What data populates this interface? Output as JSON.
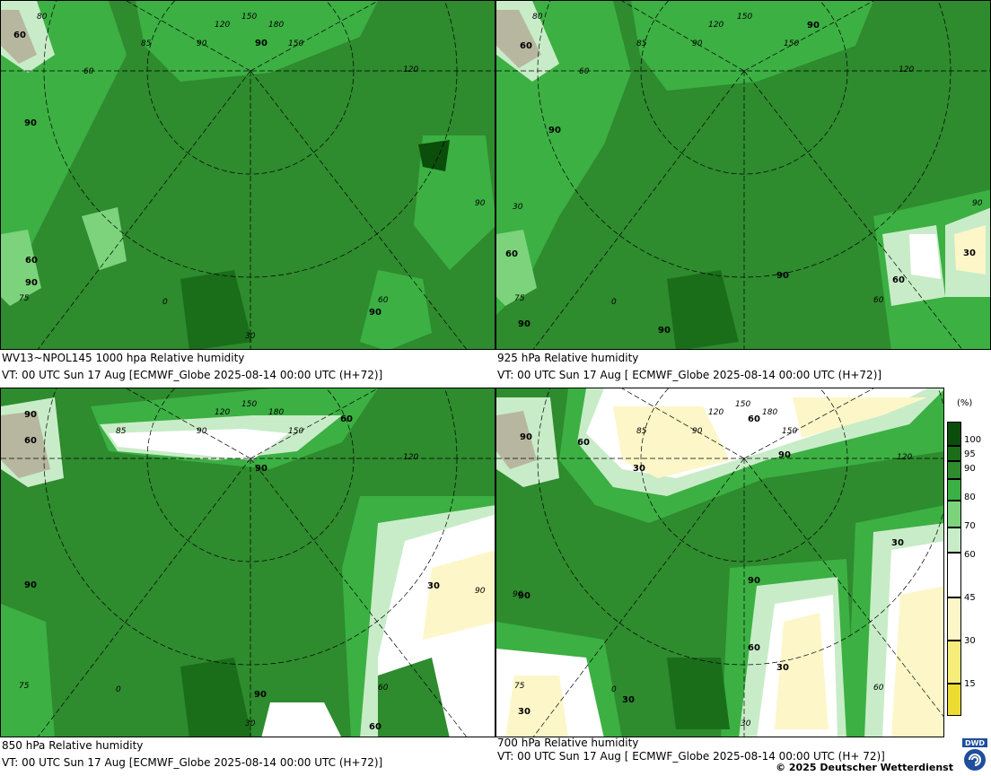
{
  "panels": [
    {
      "caption_line1": "WV13~NPOL145 1000 hpa Relative humidity",
      "caption_line2": "VT: 00 UTC Sun  17 Aug [ECMWF_Globe 2025-08-14 00:00 UTC  (H+72)]",
      "contour_labels": [
        "60",
        "90",
        "90",
        "60",
        "90",
        "90"
      ],
      "grid_labels": [
        "80",
        "120",
        "150",
        "180",
        "150",
        "85",
        "90",
        "60",
        "120",
        "75",
        "0",
        "30",
        "60",
        "90"
      ]
    },
    {
      "caption_line1": "925 hPa Relative humidity",
      "caption_line2": "VT: 00 UTC Sun  17 Aug [ ECMWF_Globe 2025-08-14 00:00 UTC (H+72)]",
      "contour_labels": [
        "60",
        "90",
        "90",
        "60",
        "90",
        "60",
        "30",
        "90",
        "90"
      ],
      "grid_labels": [
        "80",
        "120",
        "150",
        "150",
        "85",
        "90",
        "60",
        "120",
        "75",
        "0",
        "30",
        "60",
        "90"
      ]
    },
    {
      "caption_line1": "850 hPa  Relative humidity",
      "caption_line2": "VT: 00 UTC Sun  17 Aug [ECMWF_Globe 2025-08-14 00:00 UTC (H+72)]",
      "contour_labels": [
        "90",
        "60",
        "60",
        "90",
        "30",
        "90",
        "90",
        "60"
      ],
      "grid_labels": [
        "120",
        "150",
        "180",
        "150",
        "85",
        "90",
        "120",
        "75",
        "0",
        "30",
        "60",
        "90"
      ]
    },
    {
      "caption_line1": "700 hPa Relative humidity",
      "caption_line2": "VT: 00 UTC Sun  17 Aug [ ECMWF_Globe 2025-08-14 00:00 UTC  (H+ 72)]",
      "contour_labels": [
        "90",
        "60",
        "60",
        "30",
        "90",
        "30",
        "90",
        "60",
        "30",
        "30",
        "90",
        "30"
      ],
      "grid_labels": [
        "120",
        "150",
        "180",
        "150",
        "85",
        "90",
        "120",
        "75",
        "0",
        "30",
        "60",
        "90"
      ]
    }
  ],
  "legend": {
    "unit": "(%)",
    "ticks": [
      "100",
      "95",
      "90",
      "80",
      "70",
      "60",
      "45",
      "30",
      "15"
    ],
    "colors": [
      "#0b4d0b",
      "#1a6e1a",
      "#2e8b2e",
      "#3cb043",
      "#7cd37c",
      "#c8ecc8",
      "#ffffff",
      "#fdf6c8",
      "#f5ec7a",
      "#ecdc32"
    ]
  },
  "copyright": "© 2025 Deutscher Wetterdienst",
  "logo_text": "DWD",
  "colors": {
    "rh_100": "#0b4d0b",
    "rh_95": "#1a6e1a",
    "rh_90": "#2e8b2e",
    "rh_80": "#3cb043",
    "rh_70": "#7cd37c",
    "rh_60": "#c8ecc8",
    "rh_45": "#ffffff",
    "rh_30": "#fdf6c8",
    "rh_15": "#f5ec7a",
    "land_ice": "#b7b7a0"
  }
}
